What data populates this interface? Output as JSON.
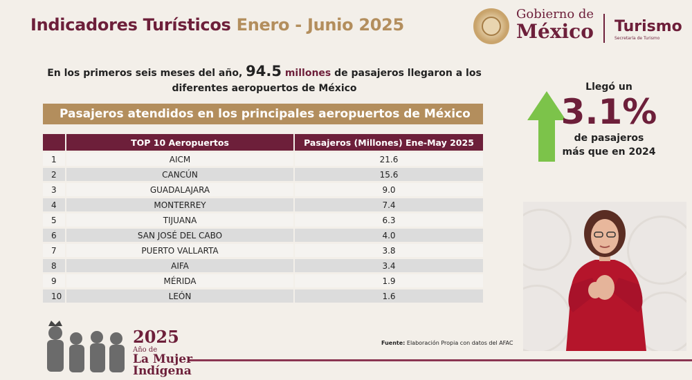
{
  "header": {
    "title_main": "Indicadores Turísticos",
    "title_period": "Enero - Junio 2025"
  },
  "logo": {
    "gobierno_small": "Gobierno de",
    "gobierno_big": "México",
    "turismo": "Turismo",
    "turismo_sub": "Secretaría de Turismo"
  },
  "intro": {
    "part1": "En los primeros seis meses del año,",
    "value": "94.5",
    "unit": "millones",
    "part2": "de pasajeros llegaron a los",
    "line2": "diferentes aeropuertos de México"
  },
  "banner": "Pasajeros atendidos en los principales aeropuertos de México",
  "table": {
    "headers": [
      "",
      "TOP 10 Aeropuertos",
      "Pasajeros (Millones) Ene-May 2025"
    ],
    "rows": [
      [
        "1",
        "AICM",
        "21.6"
      ],
      [
        "2",
        "CANCÚN",
        "15.6"
      ],
      [
        "3",
        "GUADALAJARA",
        "9.0"
      ],
      [
        "4",
        "MONTERREY",
        "7.4"
      ],
      [
        "5",
        "TIJUANA",
        "6.3"
      ],
      [
        "6",
        "SAN JOSÉ DEL CABO",
        "4.0"
      ],
      [
        "7",
        "PUERTO VALLARTA",
        "3.8"
      ],
      [
        "8",
        "AIFA",
        "3.4"
      ],
      [
        "9",
        "MÉRIDA",
        "1.9"
      ],
      [
        "10",
        "LEÓN",
        "1.6"
      ]
    ]
  },
  "stat": {
    "pre": "Llegó un",
    "value": "3.1%",
    "post1": "de pasajeros",
    "post2": "más que en 2024",
    "arrow_color": "#7cc34a"
  },
  "footer": {
    "source_label": "Fuente:",
    "source_text": "Elaboración Propia con datos del AFAC",
    "year": "2025",
    "year_sub": "Año de",
    "year_line2": "La Mujer",
    "year_line3": "Indígena"
  },
  "colors": {
    "brand": "#6d1f3a",
    "gold": "#b38e5d"
  }
}
